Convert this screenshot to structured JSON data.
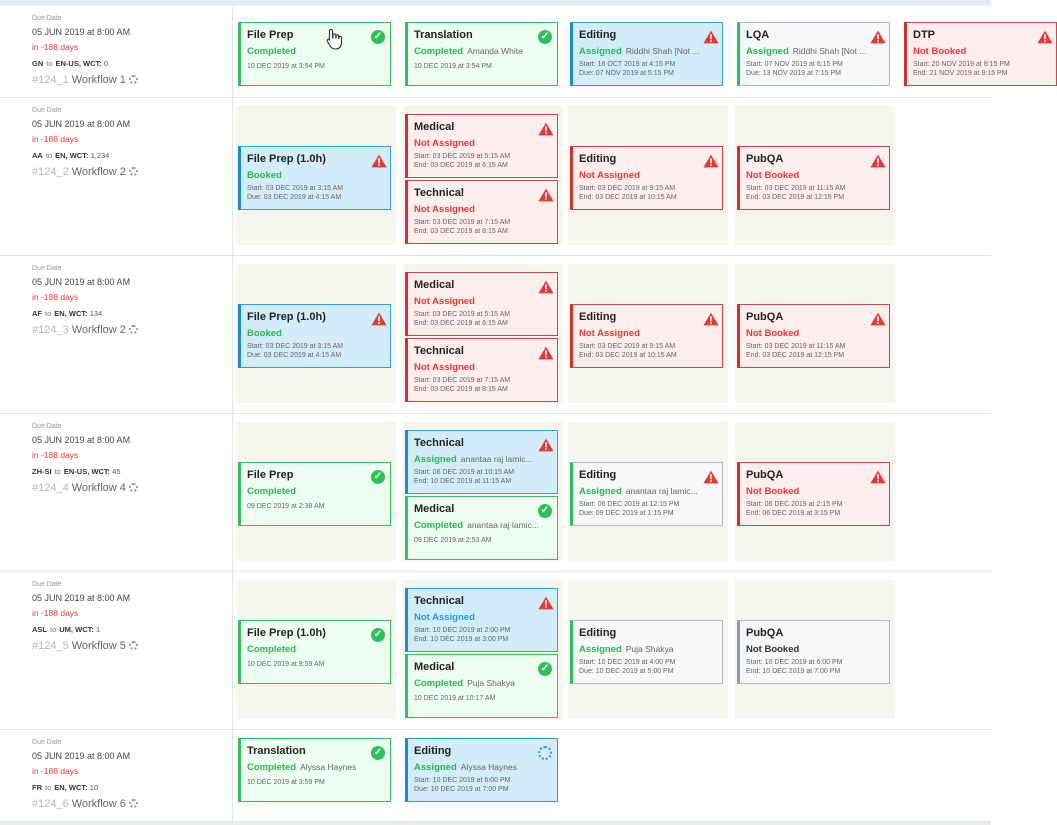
{
  "common": {
    "due_label": "Due Date",
    "due_date": "05 JUN 2019 at 8:00 AM",
    "overdue": "in -188 days",
    "to": "to",
    "wct_label": "WCT:"
  },
  "rows": [
    {
      "src": "GN",
      "tgt": "EN-US,",
      "wct": "0",
      "id": "#124_1",
      "workflow": "Workflow 1",
      "cards": [
        {
          "title": "File Prep",
          "status": "Completed",
          "who": "",
          "l1": "10 DEC 2019 at 3:54 PM",
          "l2": "",
          "icon": "check-icon"
        },
        {
          "title": "Translation",
          "status": "Completed",
          "who": "Amanda White",
          "l1": "10 DEC 2019 at 3:54 PM",
          "l2": "",
          "icon": "check-icon"
        },
        {
          "title": "Editing",
          "status": "Assigned",
          "who": "Riddhi Shah [Not ...",
          "l1": "Start: 16 OCT 2019 at 4:15 PM",
          "l2": "Due: 07 NOV 2019 at 5:15 PM",
          "icon": "warning-icon"
        },
        {
          "title": "LQA",
          "status": "Assigned",
          "who": "Riddhi Shah [Not ...",
          "l1": "Start: 07 NOV 2019 at 6:15 PM",
          "l2": "Due: 13 NOV 2019 at 7:15 PM",
          "icon": "warning-icon"
        },
        {
          "title": "DTP",
          "status": "Not Booked",
          "who": "",
          "l1": "Start: 20 NOV 2019 at 8:15 PM",
          "l2": "End: 21 NOV 2019 at 9:15 PM",
          "icon": "warning-icon"
        }
      ]
    },
    {
      "src": "AA",
      "tgt": "EN,",
      "wct": "1,234",
      "id": "#124_2",
      "workflow": "Workflow 2",
      "cards": [
        {
          "title": "File Prep (1.0h)",
          "status": "Booked",
          "who": "",
          "l1": "Start: 03 DEC 2019 at 3:15 AM",
          "l2": "Due: 03 DEC 2019 at 4:15 AM",
          "icon": "warning-icon"
        },
        {
          "title": "Medical",
          "status": "Not Assigned",
          "who": "",
          "l1": "Start: 03 DEC 2019 at 5:15 AM",
          "l2": "End: 03 DEC 2019 at 6:15 AM",
          "icon": "warning-icon"
        },
        {
          "title": "Technical",
          "status": "Not Assigned",
          "who": "",
          "l1": "Start: 03 DEC 2019 at 7:15 AM",
          "l2": "End: 03 DEC 2019 at 8:15 AM",
          "icon": "warning-icon"
        },
        {
          "title": "Editing",
          "status": "Not Assigned",
          "who": "",
          "l1": "Start: 03 DEC 2019 at 9:15 AM",
          "l2": "End: 03 DEC 2019 at 10:15 AM",
          "icon": "warning-icon"
        },
        {
          "title": "PubQA",
          "status": "Not Booked",
          "who": "",
          "l1": "Start: 03 DEC 2019 at 11:15 AM",
          "l2": "End: 03 DEC 2019 at 12:15 PM",
          "icon": "warning-icon"
        }
      ]
    },
    {
      "src": "AF",
      "tgt": "EN,",
      "wct": "134",
      "id": "#124_3",
      "workflow": "Workflow 2",
      "cards": [
        {
          "title": "File Prep (1.0h)",
          "status": "Booked",
          "who": "",
          "l1": "Start: 03 DEC 2019 at 3:15 AM",
          "l2": "Due: 03 DEC 2019 at 4:15 AM",
          "icon": "warning-icon"
        },
        {
          "title": "Medical",
          "status": "Not Assigned",
          "who": "",
          "l1": "Start: 03 DEC 2019 at 5:15 AM",
          "l2": "End: 03 DEC 2019 at 6:15 AM",
          "icon": "warning-icon"
        },
        {
          "title": "Technical",
          "status": "Not Assigned",
          "who": "",
          "l1": "Start: 03 DEC 2019 at 7:15 AM",
          "l2": "End: 03 DEC 2019 at 8:15 AM",
          "icon": "warning-icon"
        },
        {
          "title": "Editing",
          "status": "Not Assigned",
          "who": "",
          "l1": "Start: 03 DEC 2019 at 9:15 AM",
          "l2": "End: 03 DEC 2019 at 10:15 AM",
          "icon": "warning-icon"
        },
        {
          "title": "PubQA",
          "status": "Not Booked",
          "who": "",
          "l1": "Start: 03 DEC 2019 at 11:15 AM",
          "l2": "End: 03 DEC 2019 at 12:15 PM",
          "icon": "warning-icon"
        }
      ]
    },
    {
      "src": "ZH-SI",
      "tgt": "EN-US,",
      "wct": "45",
      "id": "#124_4",
      "workflow": "Workflow 4",
      "cards": [
        {
          "title": "File Prep",
          "status": "Completed",
          "who": "",
          "l1": "09 DEC 2019 at 2:38 AM",
          "l2": "",
          "icon": "check-icon"
        },
        {
          "title": "Technical",
          "status": "Assigned",
          "who": "anantaa raj lamic...",
          "l1": "Start: 06 DEC 2019 at 10:15 AM",
          "l2": "End: 10 DEC 2019 at 11:15 AM",
          "icon": "warning-icon"
        },
        {
          "title": "Medical",
          "status": "Completed",
          "who": "anantaa raj lamic...",
          "l1": "09 DEC 2019 at 2:53 AM",
          "l2": "",
          "icon": "check-icon"
        },
        {
          "title": "Editing",
          "status": "Assigned",
          "who": "anantaa raj lamic...",
          "l1": "Start: 06 DEC 2019 at 12:15 PM",
          "l2": "Due: 09 DEC 2019 at 1:15 PM",
          "icon": "warning-icon"
        },
        {
          "title": "PubQA",
          "status": "Not Booked",
          "who": "",
          "l1": "Start: 06 DEC 2019 at 2:15 PM",
          "l2": "End: 06 DEC 2019 at 3:15 PM",
          "icon": "warning-icon"
        }
      ]
    },
    {
      "src": "ASL",
      "tgt": "UM,",
      "wct": "1",
      "id": "#124_5",
      "workflow": "Workflow 5",
      "cards": [
        {
          "title": "File Prep (1.0h)",
          "status": "Completed",
          "who": "",
          "l1": "10 DEC 2019 at 9:59 AM",
          "l2": "",
          "icon": "check-icon"
        },
        {
          "title": "Technical",
          "status": "Not Assigned",
          "who": "",
          "l1": "Start: 10 DEC 2019 at 2:00 PM",
          "l2": "End: 10 DEC 2019 at 3:00 PM",
          "icon": "warning-icon"
        },
        {
          "title": "Medical",
          "status": "Completed",
          "who": "Puja Shakya",
          "l1": "10 DEC 2019 at 10:17 AM",
          "l2": "",
          "icon": "check-icon"
        },
        {
          "title": "Editing",
          "status": "Assigned",
          "who": "Puja Shakya",
          "l1": "Start: 10 DEC 2019 at 4:00 PM",
          "l2": "Due: 10 DEC 2019 at 5:00 PM",
          "icon": ""
        },
        {
          "title": "PubQA",
          "status": "Not Booked",
          "who": "",
          "l1": "Start: 10 DEC 2019 at 6:00 PM",
          "l2": "End: 10 DEC 2019 at 7:00 PM",
          "icon": ""
        }
      ]
    },
    {
      "src": "FR",
      "tgt": "EN,",
      "wct": "10",
      "id": "#124_6",
      "workflow": "Workflow 6",
      "cards": [
        {
          "title": "Translation",
          "status": "Completed",
          "who": "Alyssa Haynes",
          "l1": "10 DEC 2019 at 3:59 PM",
          "l2": "",
          "icon": "check-icon"
        },
        {
          "title": "Editing",
          "status": "Assigned",
          "who": "Alyssa Haynes",
          "l1": "Start: 10 DEC 2019 at 6:00 PM",
          "l2": "Due: 10 DEC 2019 at 7:00 PM",
          "icon": "loading-icon"
        }
      ]
    }
  ]
}
